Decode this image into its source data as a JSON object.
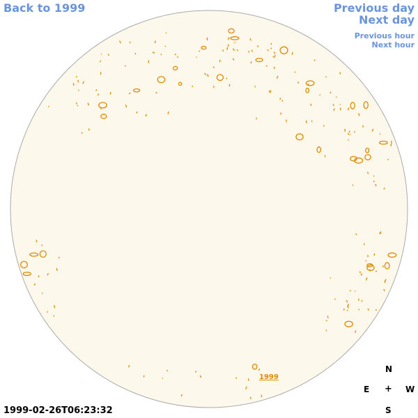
{
  "nav": {
    "back_label": "Back to 1999",
    "prev_day_label": "Previous day",
    "next_day_label": "Next day",
    "prev_hour_label": "Previous hour",
    "next_hour_label": "Next hour"
  },
  "map": {
    "year_tag": "1999",
    "timestamp": "1999-02-26T06:23:32",
    "disk_fill": "#fdf8ec",
    "disk_border": "#aaaaaa",
    "contour_color": "#e08a00"
  },
  "compass": {
    "north": "N",
    "east": "E",
    "center": "+",
    "west": "W",
    "south": "S"
  },
  "colors": {
    "link": "#6a95de",
    "contour": "#e08a00"
  }
}
